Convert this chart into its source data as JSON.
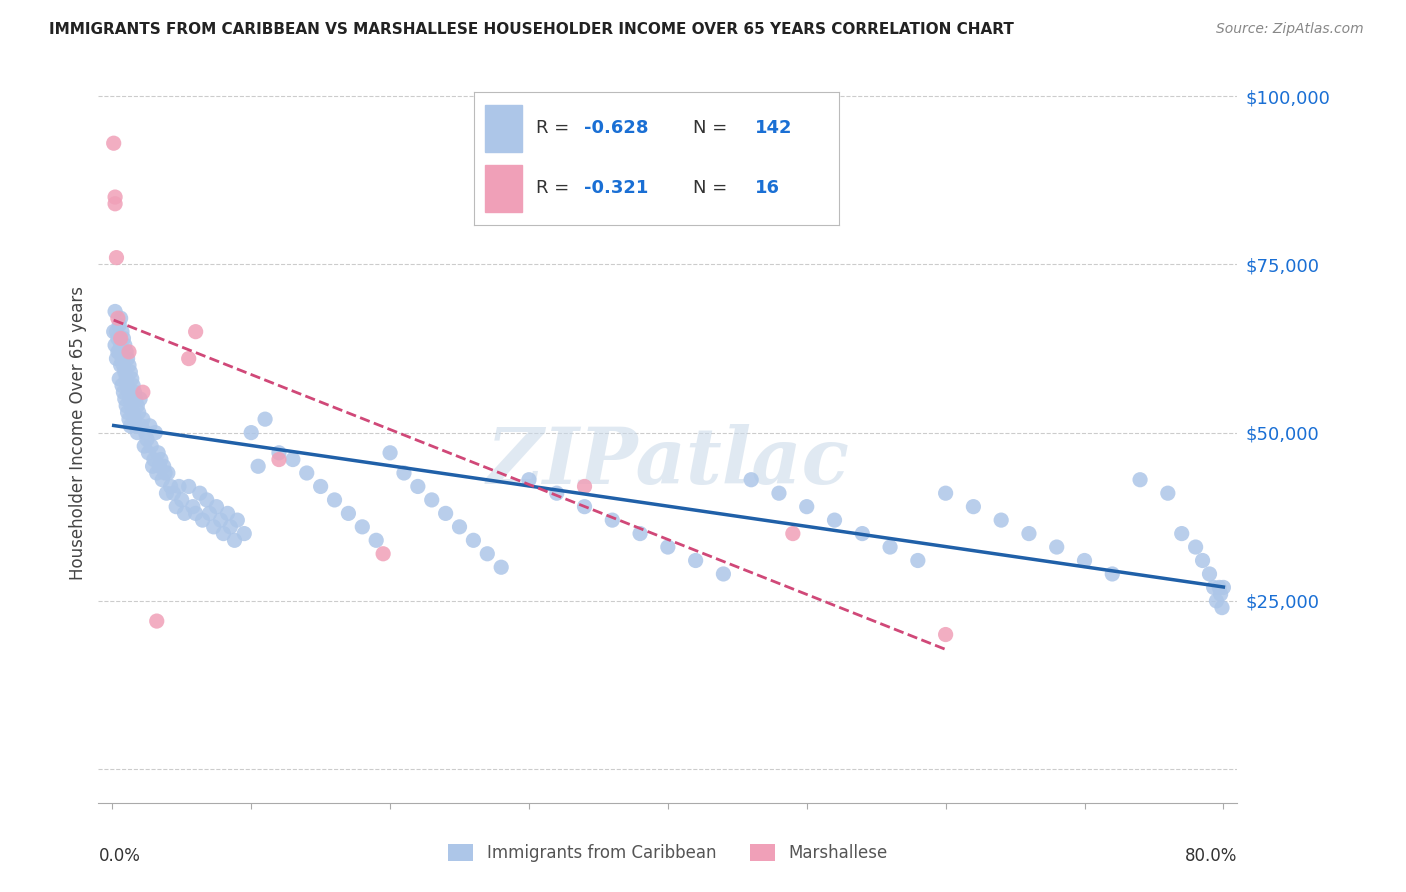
{
  "title": "IMMIGRANTS FROM CARIBBEAN VS MARSHALLESE HOUSEHOLDER INCOME OVER 65 YEARS CORRELATION CHART",
  "source": "Source: ZipAtlas.com",
  "ylabel": "Householder Income Over 65 years",
  "y_ticks": [
    0,
    25000,
    50000,
    75000,
    100000
  ],
  "y_tick_labels": [
    "",
    "$25,000",
    "$50,000",
    "$75,000",
    "$100,000"
  ],
  "caribbean_R": -0.628,
  "caribbean_N": 142,
  "marshallese_R": -0.321,
  "marshallese_N": 16,
  "caribbean_color": "#adc6e8",
  "caribbean_line_color": "#2060a8",
  "marshallese_color": "#f0a0b8",
  "marshallese_line_color": "#d04878",
  "label_color": "#1a6fd4",
  "legend_label_caribbean": "Immigrants from Caribbean",
  "legend_label_marshallese": "Marshallese",
  "watermark": "ZIPatlас",
  "xlim": [
    0.0,
    0.8
  ],
  "ylim": [
    0,
    105000
  ],
  "caribbean_x": [
    0.001,
    0.002,
    0.002,
    0.003,
    0.003,
    0.004,
    0.004,
    0.005,
    0.005,
    0.005,
    0.006,
    0.006,
    0.006,
    0.007,
    0.007,
    0.007,
    0.008,
    0.008,
    0.008,
    0.009,
    0.009,
    0.009,
    0.01,
    0.01,
    0.01,
    0.011,
    0.011,
    0.011,
    0.012,
    0.012,
    0.012,
    0.013,
    0.013,
    0.013,
    0.014,
    0.014,
    0.015,
    0.015,
    0.016,
    0.016,
    0.017,
    0.017,
    0.018,
    0.018,
    0.019,
    0.02,
    0.021,
    0.022,
    0.023,
    0.024,
    0.025,
    0.026,
    0.027,
    0.028,
    0.029,
    0.03,
    0.031,
    0.032,
    0.033,
    0.034,
    0.035,
    0.036,
    0.037,
    0.038,
    0.039,
    0.04,
    0.042,
    0.044,
    0.046,
    0.048,
    0.05,
    0.052,
    0.055,
    0.058,
    0.06,
    0.063,
    0.065,
    0.068,
    0.07,
    0.073,
    0.075,
    0.078,
    0.08,
    0.083,
    0.085,
    0.088,
    0.09,
    0.095,
    0.1,
    0.105,
    0.11,
    0.12,
    0.13,
    0.14,
    0.15,
    0.16,
    0.17,
    0.18,
    0.19,
    0.2,
    0.21,
    0.22,
    0.23,
    0.24,
    0.25,
    0.26,
    0.27,
    0.28,
    0.3,
    0.32,
    0.34,
    0.36,
    0.38,
    0.4,
    0.42,
    0.44,
    0.46,
    0.48,
    0.5,
    0.52,
    0.54,
    0.56,
    0.58,
    0.6,
    0.62,
    0.64,
    0.66,
    0.68,
    0.7,
    0.72,
    0.74,
    0.76,
    0.77,
    0.78,
    0.785,
    0.79,
    0.793,
    0.795,
    0.797,
    0.798,
    0.799,
    0.8
  ],
  "caribbean_y": [
    65000,
    68000,
    63000,
    65000,
    61000,
    64000,
    62000,
    66000,
    62000,
    58000,
    67000,
    63000,
    60000,
    65000,
    61000,
    57000,
    64000,
    60000,
    56000,
    63000,
    59000,
    55000,
    62000,
    58000,
    54000,
    61000,
    57000,
    53000,
    60000,
    56000,
    52000,
    59000,
    55000,
    51000,
    58000,
    54000,
    57000,
    53000,
    56000,
    52000,
    55000,
    51000,
    54000,
    50000,
    53000,
    55000,
    51000,
    52000,
    48000,
    50000,
    49000,
    47000,
    51000,
    48000,
    45000,
    46000,
    50000,
    44000,
    47000,
    45000,
    46000,
    43000,
    45000,
    44000,
    41000,
    44000,
    42000,
    41000,
    39000,
    42000,
    40000,
    38000,
    42000,
    39000,
    38000,
    41000,
    37000,
    40000,
    38000,
    36000,
    39000,
    37000,
    35000,
    38000,
    36000,
    34000,
    37000,
    35000,
    50000,
    45000,
    52000,
    47000,
    46000,
    44000,
    42000,
    40000,
    38000,
    36000,
    34000,
    47000,
    44000,
    42000,
    40000,
    38000,
    36000,
    34000,
    32000,
    30000,
    43000,
    41000,
    39000,
    37000,
    35000,
    33000,
    31000,
    29000,
    43000,
    41000,
    39000,
    37000,
    35000,
    33000,
    31000,
    41000,
    39000,
    37000,
    35000,
    33000,
    31000,
    29000,
    43000,
    41000,
    35000,
    33000,
    31000,
    29000,
    27000,
    25000,
    27000,
    26000,
    24000,
    27000
  ],
  "marshallese_x": [
    0.001,
    0.002,
    0.002,
    0.003,
    0.004,
    0.006,
    0.012,
    0.022,
    0.032,
    0.055,
    0.06,
    0.12,
    0.195,
    0.34,
    0.49,
    0.6
  ],
  "marshallese_y": [
    93000,
    85000,
    84000,
    76000,
    67000,
    64000,
    62000,
    56000,
    22000,
    61000,
    65000,
    46000,
    32000,
    42000,
    35000,
    20000
  ]
}
